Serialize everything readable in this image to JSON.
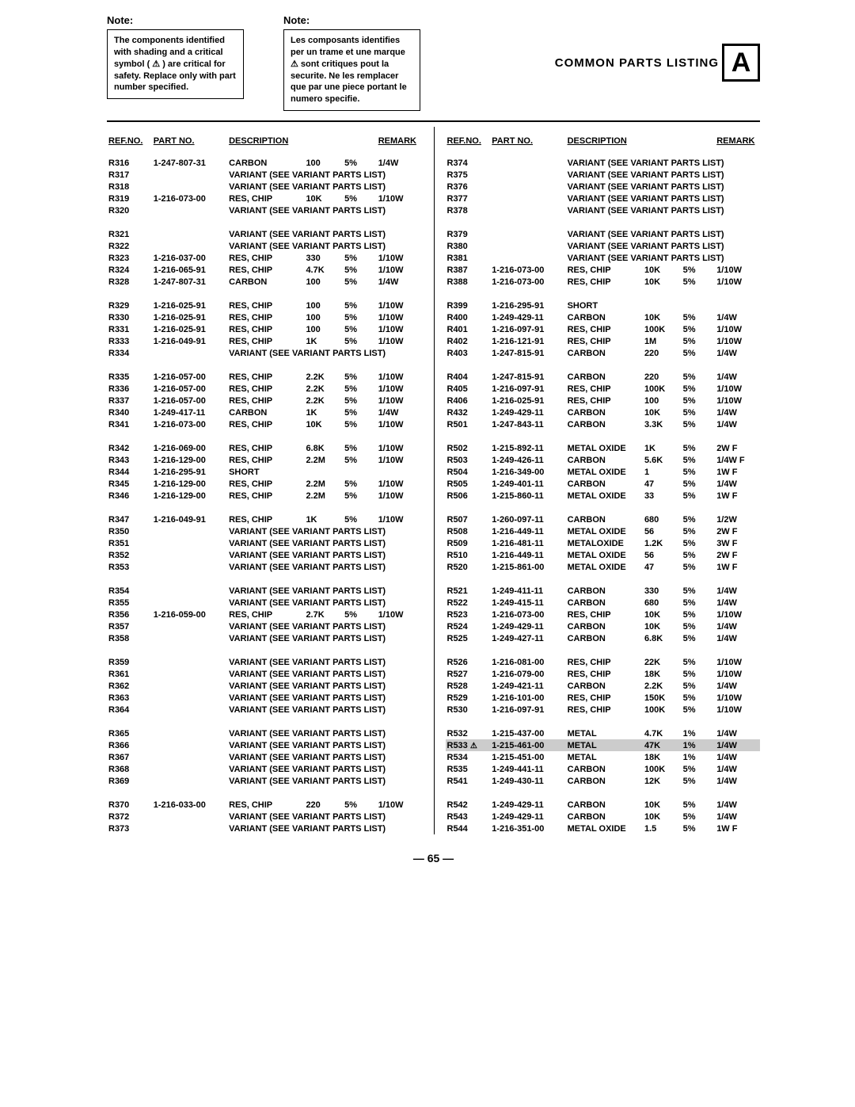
{
  "title": "COMMON PARTS LISTING",
  "icon_letter": "A",
  "page_number": "— 65 —",
  "notes": {
    "en": {
      "title": "Note:",
      "body": "The components identified with shading and a critical symbol ( ⚠ ) are critical for safety.  Replace only with part number specified."
    },
    "fr": {
      "title": "Note:",
      "body": "Les composants identifies per un trame et une marque ⚠ sont critiques pout la securite. Ne les remplacer que par une piece portant le numero specifie."
    }
  },
  "headers": {
    "ref": "REF.NO.",
    "pn": "PART NO.",
    "desc": "DESCRIPTION",
    "rem": "REMARK"
  },
  "variant_text": "VARIANT (SEE VARIANT PARTS LIST)",
  "left": [
    [
      {
        "ref": "R316",
        "pn": "1-247-807-31",
        "desc": "CARBON",
        "val": "100",
        "tol": "5%",
        "rem": "1/4W"
      },
      {
        "ref": "R317",
        "variant": true
      },
      {
        "ref": "R318",
        "variant": true
      },
      {
        "ref": "R319",
        "pn": "1-216-073-00",
        "desc": "RES, CHIP",
        "val": "10K",
        "tol": "5%",
        "rem": "1/10W"
      },
      {
        "ref": "R320",
        "variant": true
      }
    ],
    [
      {
        "ref": "R321",
        "variant": true
      },
      {
        "ref": "R322",
        "variant": true
      },
      {
        "ref": "R323",
        "pn": "1-216-037-00",
        "desc": "RES, CHIP",
        "val": "330",
        "tol": "5%",
        "rem": "1/10W"
      },
      {
        "ref": "R324",
        "pn": "1-216-065-91",
        "desc": "RES, CHIP",
        "val": "4.7K",
        "tol": "5%",
        "rem": "1/10W"
      },
      {
        "ref": "R328",
        "pn": "1-247-807-31",
        "desc": "CARBON",
        "val": "100",
        "tol": "5%",
        "rem": "1/4W"
      }
    ],
    [
      {
        "ref": "R329",
        "pn": "1-216-025-91",
        "desc": "RES, CHIP",
        "val": "100",
        "tol": "5%",
        "rem": "1/10W"
      },
      {
        "ref": "R330",
        "pn": "1-216-025-91",
        "desc": "RES, CHIP",
        "val": "100",
        "tol": "5%",
        "rem": "1/10W"
      },
      {
        "ref": "R331",
        "pn": "1-216-025-91",
        "desc": "RES, CHIP",
        "val": "100",
        "tol": "5%",
        "rem": "1/10W"
      },
      {
        "ref": "R333",
        "pn": "1-216-049-91",
        "desc": "RES, CHIP",
        "val": "1K",
        "tol": "5%",
        "rem": "1/10W"
      },
      {
        "ref": "R334",
        "variant": true
      }
    ],
    [
      {
        "ref": "R335",
        "pn": "1-216-057-00",
        "desc": "RES, CHIP",
        "val": "2.2K",
        "tol": "5%",
        "rem": "1/10W"
      },
      {
        "ref": "R336",
        "pn": "1-216-057-00",
        "desc": "RES, CHIP",
        "val": "2.2K",
        "tol": "5%",
        "rem": "1/10W"
      },
      {
        "ref": "R337",
        "pn": "1-216-057-00",
        "desc": "RES, CHIP",
        "val": "2.2K",
        "tol": "5%",
        "rem": "1/10W"
      },
      {
        "ref": "R340",
        "pn": "1-249-417-11",
        "desc": "CARBON",
        "val": "1K",
        "tol": "5%",
        "rem": "1/4W"
      },
      {
        "ref": "R341",
        "pn": "1-216-073-00",
        "desc": "RES, CHIP",
        "val": "10K",
        "tol": "5%",
        "rem": "1/10W"
      }
    ],
    [
      {
        "ref": "R342",
        "pn": "1-216-069-00",
        "desc": "RES, CHIP",
        "val": "6.8K",
        "tol": "5%",
        "rem": "1/10W"
      },
      {
        "ref": "R343",
        "pn": "1-216-129-00",
        "desc": "RES, CHIP",
        "val": "2.2M",
        "tol": "5%",
        "rem": "1/10W"
      },
      {
        "ref": "R344",
        "pn": "1-216-295-91",
        "desc": "SHORT"
      },
      {
        "ref": "R345",
        "pn": "1-216-129-00",
        "desc": "RES, CHIP",
        "val": "2.2M",
        "tol": "5%",
        "rem": "1/10W"
      },
      {
        "ref": "R346",
        "pn": "1-216-129-00",
        "desc": "RES, CHIP",
        "val": "2.2M",
        "tol": "5%",
        "rem": "1/10W"
      }
    ],
    [
      {
        "ref": "R347",
        "pn": "1-216-049-91",
        "desc": "RES, CHIP",
        "val": "1K",
        "tol": "5%",
        "rem": "1/10W"
      },
      {
        "ref": "R350",
        "variant": true
      },
      {
        "ref": "R351",
        "variant": true
      },
      {
        "ref": "R352",
        "variant": true
      },
      {
        "ref": "R353",
        "variant": true
      }
    ],
    [
      {
        "ref": "R354",
        "variant": true
      },
      {
        "ref": "R355",
        "variant": true
      },
      {
        "ref": "R356",
        "pn": "1-216-059-00",
        "desc": "RES, CHIP",
        "val": "2.7K",
        "tol": "5%",
        "rem": "1/10W"
      },
      {
        "ref": "R357",
        "variant": true
      },
      {
        "ref": "R358",
        "variant": true
      }
    ],
    [
      {
        "ref": "R359",
        "variant": true
      },
      {
        "ref": "R361",
        "variant": true
      },
      {
        "ref": "R362",
        "variant": true
      },
      {
        "ref": "R363",
        "variant": true
      },
      {
        "ref": "R364",
        "variant": true
      }
    ],
    [
      {
        "ref": "R365",
        "variant": true
      },
      {
        "ref": "R366",
        "variant": true
      },
      {
        "ref": "R367",
        "variant": true
      },
      {
        "ref": "R368",
        "variant": true
      },
      {
        "ref": "R369",
        "variant": true
      }
    ],
    [
      {
        "ref": "R370",
        "pn": "1-216-033-00",
        "desc": "RES, CHIP",
        "val": "220",
        "tol": "5%",
        "rem": "1/10W"
      },
      {
        "ref": "R372",
        "variant": true
      },
      {
        "ref": "R373",
        "variant": true
      }
    ]
  ],
  "right": [
    [
      {
        "ref": "R374",
        "variant": true
      },
      {
        "ref": "R375",
        "variant": true
      },
      {
        "ref": "R376",
        "variant": true
      },
      {
        "ref": "R377",
        "variant": true
      },
      {
        "ref": "R378",
        "variant": true
      }
    ],
    [
      {
        "ref": "R379",
        "variant": true
      },
      {
        "ref": "R380",
        "variant": true
      },
      {
        "ref": "R381",
        "variant": true
      },
      {
        "ref": "R387",
        "pn": "1-216-073-00",
        "desc": "RES, CHIP",
        "val": "10K",
        "tol": "5%",
        "rem": "1/10W"
      },
      {
        "ref": "R388",
        "pn": "1-216-073-00",
        "desc": "RES, CHIP",
        "val": "10K",
        "tol": "5%",
        "rem": "1/10W"
      }
    ],
    [
      {
        "ref": "R399",
        "pn": "1-216-295-91",
        "desc": "SHORT"
      },
      {
        "ref": "R400",
        "pn": "1-249-429-11",
        "desc": "CARBON",
        "val": "10K",
        "tol": "5%",
        "rem": "1/4W"
      },
      {
        "ref": "R401",
        "pn": "1-216-097-91",
        "desc": "RES, CHIP",
        "val": "100K",
        "tol": "5%",
        "rem": "1/10W"
      },
      {
        "ref": "R402",
        "pn": "1-216-121-91",
        "desc": "RES, CHIP",
        "val": "1M",
        "tol": "5%",
        "rem": "1/10W"
      },
      {
        "ref": "R403",
        "pn": "1-247-815-91",
        "desc": "CARBON",
        "val": "220",
        "tol": "5%",
        "rem": "1/4W"
      }
    ],
    [
      {
        "ref": "R404",
        "pn": "1-247-815-91",
        "desc": "CARBON",
        "val": "220",
        "tol": "5%",
        "rem": "1/4W"
      },
      {
        "ref": "R405",
        "pn": "1-216-097-91",
        "desc": "RES, CHIP",
        "val": "100K",
        "tol": "5%",
        "rem": "1/10W"
      },
      {
        "ref": "R406",
        "pn": "1-216-025-91",
        "desc": "RES, CHIP",
        "val": "100",
        "tol": "5%",
        "rem": "1/10W"
      },
      {
        "ref": "R432",
        "pn": "1-249-429-11",
        "desc": "CARBON",
        "val": "10K",
        "tol": "5%",
        "rem": "1/4W"
      },
      {
        "ref": "R501",
        "pn": "1-247-843-11",
        "desc": "CARBON",
        "val": "3.3K",
        "tol": "5%",
        "rem": "1/4W"
      }
    ],
    [
      {
        "ref": "R502",
        "pn": "1-215-892-11",
        "desc": "METAL OXIDE",
        "val": "1K",
        "tol": "5%",
        "rem": "2W   F"
      },
      {
        "ref": "R503",
        "pn": "1-249-426-11",
        "desc": "CARBON",
        "val": "5.6K",
        "tol": "5%",
        "rem": "1/4W F"
      },
      {
        "ref": "R504",
        "pn": "1-216-349-00",
        "desc": "METAL OXIDE",
        "val": "1",
        "tol": "5%",
        "rem": "1W   F"
      },
      {
        "ref": "R505",
        "pn": "1-249-401-11",
        "desc": "CARBON",
        "val": "47",
        "tol": "5%",
        "rem": "1/4W"
      },
      {
        "ref": "R506",
        "pn": "1-215-860-11",
        "desc": "METAL OXIDE",
        "val": "33",
        "tol": "5%",
        "rem": "1W   F"
      }
    ],
    [
      {
        "ref": "R507",
        "pn": "1-260-097-11",
        "desc": "CARBON",
        "val": "680",
        "tol": "5%",
        "rem": "1/2W"
      },
      {
        "ref": "R508",
        "pn": "1-216-449-11",
        "desc": "METAL OXIDE",
        "val": "56",
        "tol": "5%",
        "rem": "2W   F"
      },
      {
        "ref": "R509",
        "pn": "1-216-481-11",
        "desc": "METALOXIDE",
        "val": "1.2K",
        "tol": "5%",
        "rem": "3W   F"
      },
      {
        "ref": "R510",
        "pn": "1-216-449-11",
        "desc": "METAL OXIDE",
        "val": "56",
        "tol": "5%",
        "rem": "2W   F"
      },
      {
        "ref": "R520",
        "pn": "1-215-861-00",
        "desc": "METAL OXIDE",
        "val": "47",
        "tol": "5%",
        "rem": "1W   F"
      }
    ],
    [
      {
        "ref": "R521",
        "pn": "1-249-411-11",
        "desc": "CARBON",
        "val": "330",
        "tol": "5%",
        "rem": "1/4W"
      },
      {
        "ref": "R522",
        "pn": "1-249-415-11",
        "desc": "CARBON",
        "val": "680",
        "tol": "5%",
        "rem": "1/4W"
      },
      {
        "ref": "R523",
        "pn": "1-216-073-00",
        "desc": "RES, CHIP",
        "val": "10K",
        "tol": "5%",
        "rem": "1/10W"
      },
      {
        "ref": "R524",
        "pn": "1-249-429-11",
        "desc": "CARBON",
        "val": "10K",
        "tol": "5%",
        "rem": "1/4W"
      },
      {
        "ref": "R525",
        "pn": "1-249-427-11",
        "desc": "CARBON",
        "val": "6.8K",
        "tol": "5%",
        "rem": "1/4W"
      }
    ],
    [
      {
        "ref": "R526",
        "pn": "1-216-081-00",
        "desc": "RES, CHIP",
        "val": "22K",
        "tol": "5%",
        "rem": "1/10W"
      },
      {
        "ref": "R527",
        "pn": "1-216-079-00",
        "desc": "RES, CHIP",
        "val": "18K",
        "tol": "5%",
        "rem": "1/10W"
      },
      {
        "ref": "R528",
        "pn": "1-249-421-11",
        "desc": "CARBON",
        "val": "2.2K",
        "tol": "5%",
        "rem": "1/4W"
      },
      {
        "ref": "R529",
        "pn": "1-216-101-00",
        "desc": "RES, CHIP",
        "val": "150K",
        "tol": "5%",
        "rem": "1/10W"
      },
      {
        "ref": "R530",
        "pn": "1-216-097-91",
        "desc": "RES, CHIP",
        "val": "100K",
        "tol": "5%",
        "rem": "1/10W"
      }
    ],
    [
      {
        "ref": "R532",
        "pn": "1-215-437-00",
        "desc": "METAL",
        "val": "4.7K",
        "tol": "1%",
        "rem": "1/4W"
      },
      {
        "ref": "R533",
        "critical": true,
        "pn": "1-215-461-00",
        "desc": "METAL",
        "val": "47K",
        "tol": "1%",
        "rem": "1/4W",
        "shade": true
      },
      {
        "ref": "R534",
        "pn": "1-215-451-00",
        "desc": "METAL",
        "val": "18K",
        "tol": "1%",
        "rem": "1/4W"
      },
      {
        "ref": "R535",
        "pn": "1-249-441-11",
        "desc": "CARBON",
        "val": "100K",
        "tol": "5%",
        "rem": "1/4W"
      },
      {
        "ref": "R541",
        "pn": "1-249-430-11",
        "desc": "CARBON",
        "val": "12K",
        "tol": "5%",
        "rem": "1/4W"
      }
    ],
    [
      {
        "ref": "R542",
        "pn": "1-249-429-11",
        "desc": "CARBON",
        "val": "10K",
        "tol": "5%",
        "rem": "1/4W"
      },
      {
        "ref": "R543",
        "pn": "1-249-429-11",
        "desc": "CARBON",
        "val": "10K",
        "tol": "5%",
        "rem": "1/4W"
      },
      {
        "ref": "R544",
        "pn": "1-216-351-00",
        "desc": "METAL OXIDE",
        "val": "1.5",
        "tol": "5%",
        "rem": "1W   F"
      }
    ]
  ]
}
